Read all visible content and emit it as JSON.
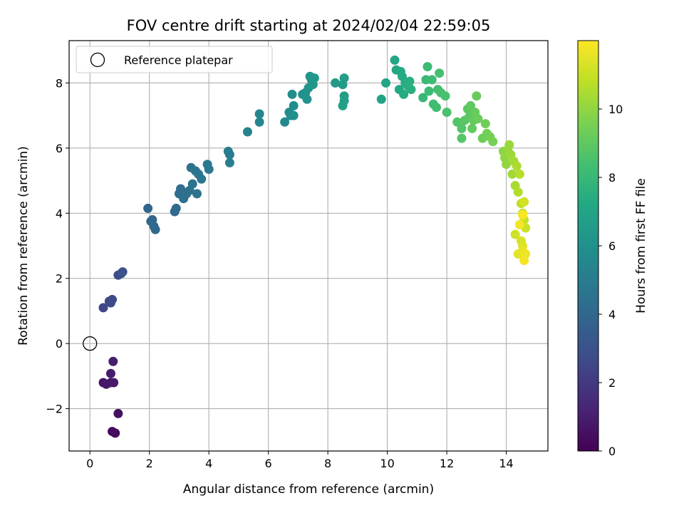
{
  "chart_data": {
    "type": "scatter",
    "title": "FOV centre drift starting at 2024/02/04 22:59:05",
    "xlabel": "Angular distance from reference (arcmin)",
    "ylabel": "Rotation from reference (arcmin)",
    "xlim": [
      -0.7,
      15.4
    ],
    "ylim": [
      -3.3,
      9.3
    ],
    "x_ticks": [
      0,
      2,
      4,
      6,
      8,
      10,
      12,
      14
    ],
    "y_ticks": [
      -2,
      0,
      2,
      4,
      6,
      8
    ],
    "grid": true,
    "legend": {
      "placement": "top-left",
      "entries": [
        "Reference platepar"
      ]
    },
    "reference_point": {
      "label": "Reference platepar",
      "x": 0,
      "y": 0
    },
    "colorbar": {
      "label": "Hours from first FF file",
      "colormap": "viridis",
      "range": [
        0,
        12
      ],
      "ticks": [
        0,
        2,
        4,
        6,
        8,
        10
      ]
    },
    "points": [
      [
        0.85,
        -2.75,
        0.3
      ],
      [
        0.75,
        -2.7,
        0.35
      ],
      [
        0.95,
        -2.15,
        0.5
      ],
      [
        0.45,
        -1.2,
        0.7
      ],
      [
        0.55,
        -1.25,
        0.75
      ],
      [
        0.7,
        -1.2,
        0.8
      ],
      [
        0.8,
        -1.2,
        0.85
      ],
      [
        0.7,
        -0.92,
        0.9
      ],
      [
        0.78,
        -0.55,
        1.0
      ],
      [
        0.45,
        1.1,
        2.5
      ],
      [
        0.65,
        1.3,
        2.6
      ],
      [
        0.7,
        1.25,
        2.65
      ],
      [
        0.75,
        1.35,
        2.7
      ],
      [
        0.95,
        2.1,
        2.8
      ],
      [
        1.05,
        2.15,
        2.9
      ],
      [
        1.1,
        2.2,
        3.0
      ],
      [
        1.95,
        4.15,
        3.9
      ],
      [
        2.05,
        3.75,
        4.0
      ],
      [
        2.1,
        3.8,
        4.0
      ],
      [
        2.15,
        3.6,
        4.05
      ],
      [
        2.2,
        3.5,
        4.1
      ],
      [
        2.85,
        4.05,
        4.15
      ],
      [
        2.9,
        4.15,
        4.2
      ],
      [
        3.0,
        4.6,
        4.25
      ],
      [
        3.05,
        4.75,
        4.3
      ],
      [
        3.15,
        4.45,
        4.35
      ],
      [
        3.25,
        4.6,
        4.4
      ],
      [
        3.35,
        4.7,
        4.45
      ],
      [
        3.4,
        5.4,
        4.5
      ],
      [
        3.45,
        4.9,
        4.55
      ],
      [
        3.55,
        5.3,
        4.6
      ],
      [
        3.6,
        4.6,
        4.65
      ],
      [
        3.65,
        5.2,
        4.7
      ],
      [
        3.75,
        5.05,
        4.75
      ],
      [
        3.95,
        5.5,
        4.8
      ],
      [
        4.0,
        5.35,
        4.85
      ],
      [
        4.65,
        5.9,
        5.0
      ],
      [
        4.7,
        5.8,
        5.05
      ],
      [
        4.7,
        5.55,
        5.1
      ],
      [
        5.3,
        6.5,
        5.3
      ],
      [
        5.7,
        7.05,
        5.4
      ],
      [
        5.7,
        6.8,
        5.45
      ],
      [
        6.55,
        6.8,
        5.6
      ],
      [
        6.7,
        7.1,
        5.7
      ],
      [
        6.75,
        7.0,
        5.75
      ],
      [
        6.8,
        7.65,
        5.8
      ],
      [
        6.85,
        7.3,
        5.85
      ],
      [
        6.85,
        7.0,
        5.9
      ],
      [
        7.15,
        7.65,
        6.0
      ],
      [
        7.25,
        7.7,
        6.05
      ],
      [
        7.3,
        7.5,
        6.1
      ],
      [
        7.35,
        7.85,
        6.15
      ],
      [
        7.4,
        8.2,
        6.2
      ],
      [
        7.45,
        8.1,
        6.25
      ],
      [
        7.5,
        7.95,
        6.3
      ],
      [
        7.55,
        8.15,
        6.35
      ],
      [
        8.25,
        8.0,
        6.5
      ],
      [
        8.5,
        7.95,
        6.6
      ],
      [
        8.55,
        8.15,
        6.65
      ],
      [
        8.55,
        7.6,
        6.7
      ],
      [
        8.55,
        7.45,
        6.75
      ],
      [
        8.5,
        7.3,
        6.8
      ],
      [
        9.8,
        7.5,
        7.0
      ],
      [
        9.95,
        8.0,
        7.05
      ],
      [
        10.25,
        8.7,
        7.1
      ],
      [
        10.3,
        8.4,
        7.15
      ],
      [
        10.4,
        7.8,
        7.2
      ],
      [
        10.45,
        8.35,
        7.25
      ],
      [
        10.5,
        8.2,
        7.3
      ],
      [
        10.55,
        7.65,
        7.35
      ],
      [
        10.6,
        8.0,
        7.4
      ],
      [
        10.7,
        7.9,
        7.45
      ],
      [
        10.75,
        8.05,
        7.5
      ],
      [
        10.8,
        7.8,
        7.55
      ],
      [
        11.2,
        7.55,
        8.0
      ],
      [
        11.3,
        8.1,
        8.05
      ],
      [
        11.35,
        8.5,
        8.1
      ],
      [
        11.4,
        7.75,
        8.15
      ],
      [
        11.5,
        8.1,
        8.2
      ],
      [
        11.55,
        7.35,
        8.25
      ],
      [
        11.65,
        7.25,
        8.3
      ],
      [
        11.7,
        7.8,
        8.35
      ],
      [
        11.75,
        8.3,
        8.4
      ],
      [
        11.8,
        7.7,
        8.45
      ],
      [
        11.95,
        7.6,
        8.5
      ],
      [
        12.0,
        7.1,
        8.55
      ],
      [
        12.35,
        6.8,
        8.7
      ],
      [
        12.5,
        6.6,
        8.75
      ],
      [
        12.5,
        6.3,
        8.8
      ],
      [
        12.6,
        6.85,
        8.85
      ],
      [
        12.7,
        7.2,
        8.9
      ],
      [
        12.75,
        6.95,
        8.95
      ],
      [
        12.8,
        7.3,
        9.0
      ],
      [
        12.85,
        6.6,
        9.05
      ],
      [
        12.9,
        6.85,
        9.1
      ],
      [
        12.95,
        7.1,
        9.15
      ],
      [
        13.0,
        7.6,
        9.2
      ],
      [
        13.05,
        6.9,
        9.25
      ],
      [
        13.2,
        6.3,
        9.3
      ],
      [
        13.3,
        6.75,
        9.35
      ],
      [
        13.35,
        6.45,
        9.4
      ],
      [
        13.45,
        6.35,
        9.45
      ],
      [
        13.55,
        6.2,
        9.5
      ],
      [
        13.9,
        5.9,
        9.9
      ],
      [
        13.95,
        5.7,
        10.0
      ],
      [
        14.0,
        5.5,
        10.05
      ],
      [
        14.05,
        5.95,
        10.1
      ],
      [
        14.1,
        6.1,
        10.15
      ],
      [
        14.15,
        5.8,
        10.2
      ],
      [
        14.2,
        5.2,
        10.3
      ],
      [
        14.25,
        5.6,
        10.35
      ],
      [
        14.3,
        4.85,
        10.45
      ],
      [
        14.35,
        5.45,
        10.5
      ],
      [
        14.4,
        4.65,
        10.6
      ],
      [
        14.45,
        5.2,
        10.7
      ],
      [
        14.5,
        4.3,
        10.8
      ],
      [
        14.55,
        4.0,
        10.9
      ],
      [
        14.6,
        3.8,
        11.0
      ],
      [
        14.65,
        3.55,
        11.05
      ],
      [
        14.3,
        3.35,
        11.1
      ],
      [
        14.6,
        4.35,
        11.2
      ],
      [
        14.5,
        3.15,
        11.3
      ],
      [
        14.55,
        3.0,
        11.4
      ],
      [
        14.4,
        2.75,
        11.5
      ],
      [
        14.55,
        2.85,
        11.6
      ],
      [
        14.65,
        2.75,
        11.7
      ],
      [
        14.6,
        2.55,
        11.8
      ],
      [
        14.45,
        3.65,
        11.85
      ],
      [
        14.55,
        3.95,
        11.9
      ]
    ]
  }
}
